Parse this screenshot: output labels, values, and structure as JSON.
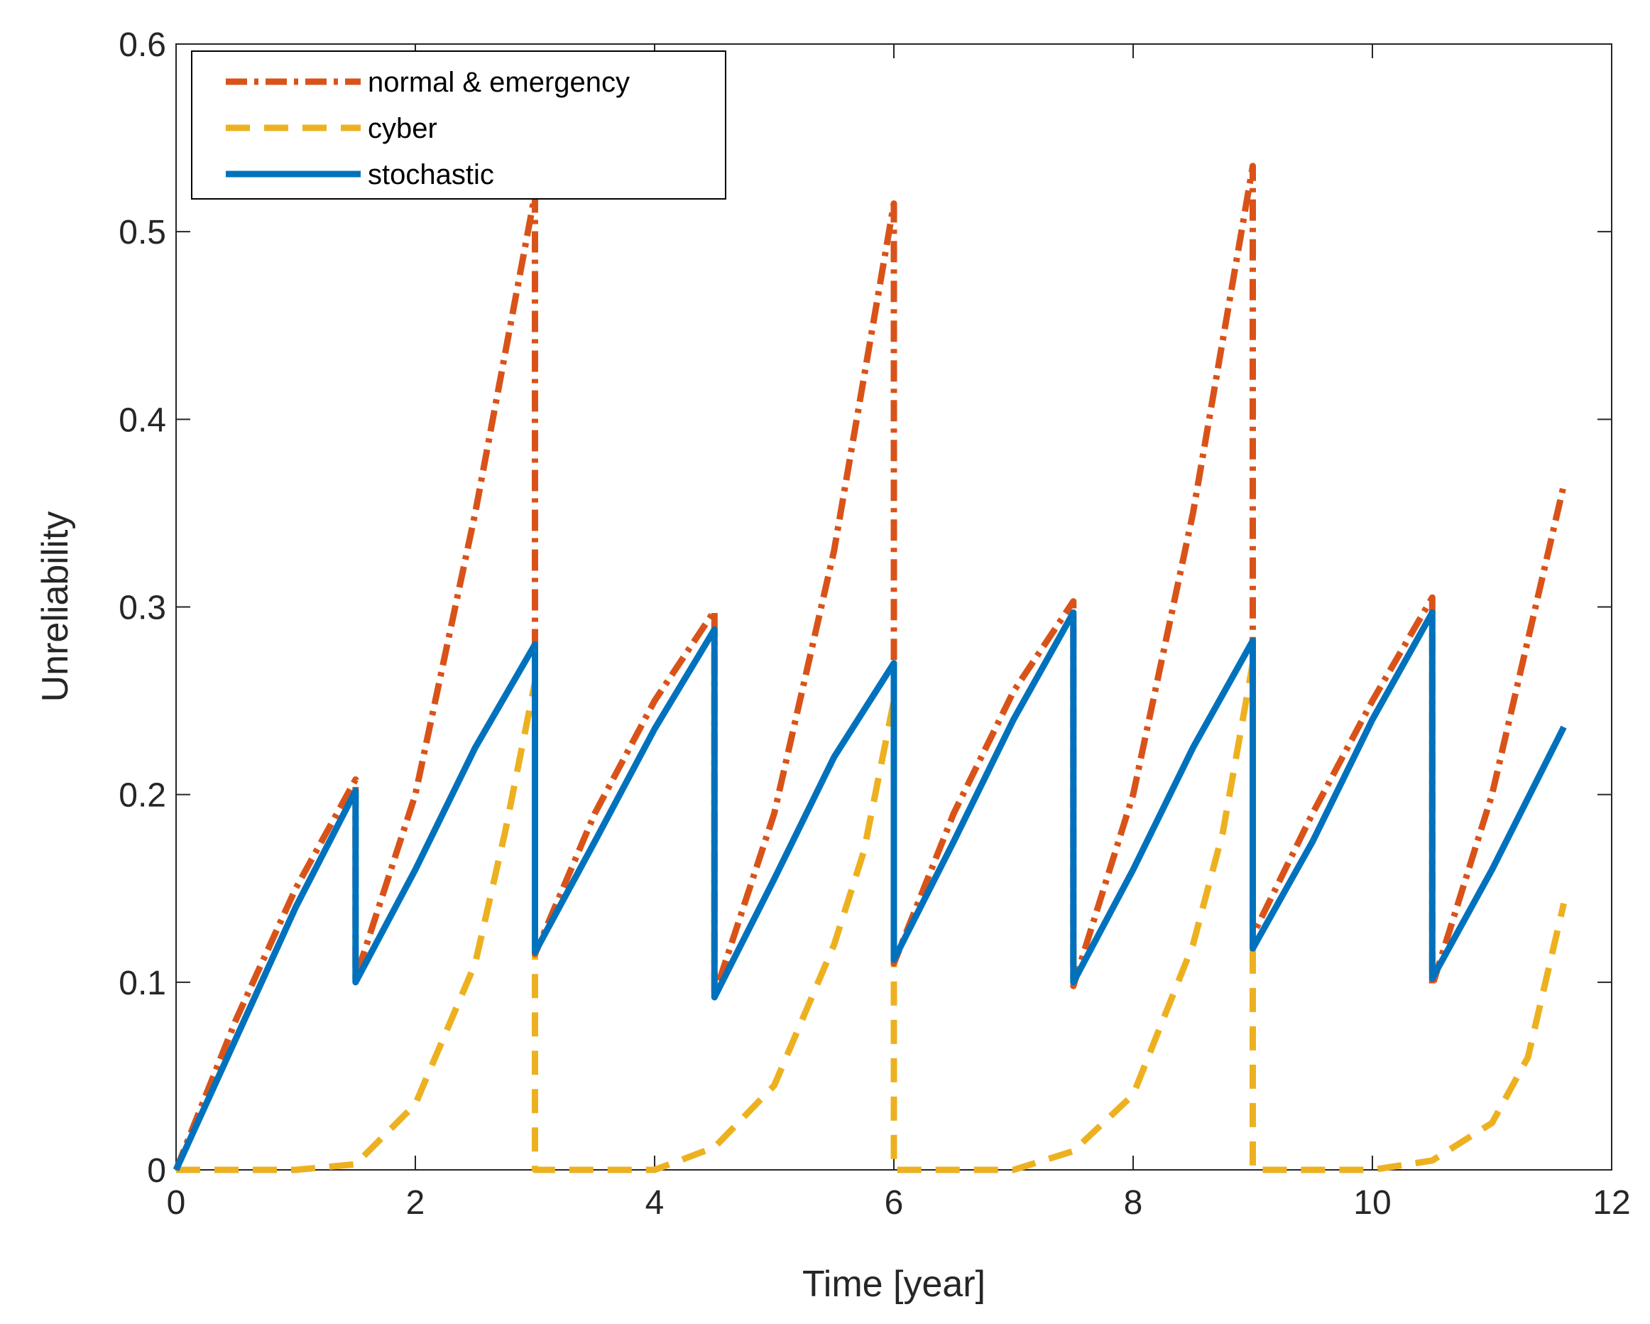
{
  "chart_data": {
    "type": "line",
    "title": "",
    "xlabel": "Time [year]",
    "ylabel": "Unreliability",
    "xlim": [
      0,
      12
    ],
    "ylim": [
      0,
      0.6
    ],
    "xticks": [
      0,
      2,
      4,
      6,
      8,
      10,
      12
    ],
    "xtick_labels": [
      "0",
      "2",
      "4",
      "6",
      "8",
      "10",
      "12"
    ],
    "yticks": [
      0,
      0.1,
      0.2,
      0.3,
      0.4,
      0.5,
      0.6
    ],
    "ytick_labels": [
      "0",
      "0.1",
      "0.2",
      "0.3",
      "0.4",
      "0.5",
      "0.6"
    ],
    "grid": false,
    "legend_position": "top-left",
    "series": [
      {
        "name": "normal & emergency",
        "color": "#D95319",
        "style": "dashdot",
        "x": [
          0,
          0.5,
          1.0,
          1.5,
          1.5,
          2.0,
          2.5,
          3.0,
          3.0,
          3.5,
          4.0,
          4.5,
          4.5,
          5.0,
          5.5,
          6.0,
          6.0,
          6.5,
          7.0,
          7.5,
          7.5,
          8.0,
          8.5,
          9.0,
          9.0,
          9.5,
          10.0,
          10.5,
          10.5,
          11.0,
          11.6
        ],
        "y": [
          0,
          0.08,
          0.15,
          0.208,
          0.102,
          0.2,
          0.35,
          0.52,
          0.115,
          0.19,
          0.25,
          0.298,
          0.093,
          0.19,
          0.33,
          0.515,
          0.11,
          0.19,
          0.255,
          0.303,
          0.098,
          0.2,
          0.35,
          0.535,
          0.125,
          0.19,
          0.25,
          0.305,
          0.098,
          0.2,
          0.365
        ]
      },
      {
        "name": "cyber",
        "color": "#EDB120",
        "style": "dashed",
        "x": [
          0,
          1.0,
          1.5,
          2.0,
          2.5,
          2.75,
          3.0,
          3.0,
          4.0,
          4.5,
          5.0,
          5.5,
          5.75,
          6.0,
          6.0,
          7.0,
          7.5,
          8.0,
          8.5,
          8.75,
          9.0,
          9.0,
          10.0,
          10.5,
          11.0,
          11.3,
          11.6
        ],
        "y": [
          0,
          0,
          0.003,
          0.035,
          0.11,
          0.18,
          0.26,
          0,
          0,
          0.012,
          0.045,
          0.12,
          0.17,
          0.25,
          0,
          0,
          0.01,
          0.04,
          0.12,
          0.18,
          0.27,
          0,
          0,
          0.005,
          0.025,
          0.06,
          0.142
        ]
      },
      {
        "name": "stochastic",
        "color": "#0072BD",
        "style": "solid",
        "x": [
          0,
          0.5,
          1.0,
          1.5,
          1.5,
          2.0,
          2.5,
          3.0,
          3.0,
          3.5,
          4.0,
          4.5,
          4.5,
          5.0,
          5.5,
          6.0,
          6.0,
          6.5,
          7.0,
          7.5,
          7.5,
          8.0,
          8.5,
          9.0,
          9.0,
          9.5,
          10.0,
          10.5,
          10.5,
          11.0,
          11.6
        ],
        "y": [
          0,
          0.07,
          0.14,
          0.202,
          0.1,
          0.16,
          0.225,
          0.28,
          0.116,
          0.175,
          0.235,
          0.288,
          0.092,
          0.155,
          0.22,
          0.27,
          0.112,
          0.175,
          0.24,
          0.297,
          0.1,
          0.16,
          0.225,
          0.282,
          0.118,
          0.175,
          0.24,
          0.297,
          0.102,
          0.16,
          0.236
        ]
      }
    ]
  }
}
